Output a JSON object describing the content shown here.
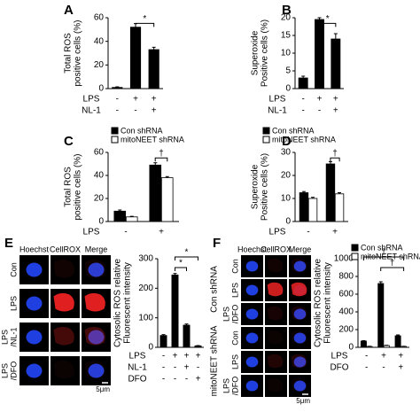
{
  "chart_data": [
    {
      "type": "bar",
      "panel": "A",
      "ylabel": [
        "Total ROS",
        "positive cells (%)"
      ],
      "values": [
        1,
        52,
        33
      ],
      "errors": [
        0.5,
        3,
        2
      ],
      "color": "#000000",
      "ylim": [
        0,
        60
      ],
      "yticks": [
        0,
        20,
        40,
        60
      ],
      "conditions": [
        {
          "name": "LPS",
          "values": [
            "-",
            "+",
            "+"
          ]
        },
        {
          "name": "NL-1",
          "values": [
            "-",
            "-",
            "+"
          ]
        }
      ],
      "annotations": [
        "*"
      ]
    },
    {
      "type": "bar",
      "panel": "B",
      "ylabel": [
        "Superoxide",
        "Positive cells (%)"
      ],
      "values": [
        3,
        19.5,
        14
      ],
      "errors": [
        0.5,
        0.5,
        1.5
      ],
      "color": "#000000",
      "ylim": [
        0,
        20
      ],
      "yticks": [
        0,
        5,
        10,
        15,
        20
      ],
      "conditions": [
        {
          "name": "LPS",
          "values": [
            "-",
            "+",
            "+"
          ]
        },
        {
          "name": "NL-1",
          "values": [
            "-",
            "-",
            "+"
          ]
        }
      ],
      "annotations": [
        "*"
      ]
    },
    {
      "type": "bar",
      "panel": "C",
      "ylabel": [
        "Total ROS",
        "positive cells (%)"
      ],
      "series": [
        {
          "name": "Con shRNA",
          "color": "#000000",
          "values": [
            9,
            49
          ],
          "errors": [
            1,
            2
          ]
        },
        {
          "name": "mitoNEET shRNA",
          "color": "#ffffff",
          "values": [
            4,
            38
          ],
          "errors": [
            0.5,
            1
          ]
        }
      ],
      "ylim": [
        0,
        60
      ],
      "yticks": [
        0,
        20,
        40,
        60
      ],
      "conditions": [
        {
          "name": "LPS",
          "values": [
            "-",
            "+"
          ]
        }
      ],
      "annotations": [
        "†"
      ]
    },
    {
      "type": "bar",
      "panel": "D",
      "ylabel": [
        "Superoxide",
        "Positive cells (%)"
      ],
      "series": [
        {
          "name": "Con shRNA",
          "color": "#000000",
          "values": [
            12.5,
            25
          ],
          "errors": [
            0.5,
            1
          ]
        },
        {
          "name": "mitoNEET shRNA",
          "color": "#ffffff",
          "values": [
            10,
            12
          ],
          "errors": [
            0.5,
            0.5
          ]
        }
      ],
      "ylim": [
        0,
        30
      ],
      "yticks": [
        0,
        10,
        20,
        30
      ],
      "conditions": [
        {
          "name": "LPS",
          "values": [
            "-",
            "+"
          ]
        }
      ],
      "annotations": [
        "†"
      ]
    },
    {
      "type": "bar",
      "ylabel": [
        "Cytosolic ROS relative",
        "Fluorescent intensity"
      ],
      "values": [
        40,
        245,
        75,
        5
      ],
      "errors": [
        3,
        5,
        4,
        1
      ],
      "color": "#000000",
      "ylim": [
        0,
        300
      ],
      "yticks": [
        0,
        100,
        200,
        300
      ],
      "conditions": [
        {
          "name": "LPS",
          "values": [
            "-",
            "+",
            "+",
            "+"
          ]
        },
        {
          "name": "NL-1",
          "values": [
            "-",
            "-",
            "+",
            "-"
          ]
        },
        {
          "name": "DFO",
          "values": [
            "-",
            "-",
            "-",
            "+"
          ]
        }
      ],
      "annotations": [
        "*",
        "*"
      ]
    },
    {
      "type": "bar",
      "ylabel": [
        "Cytosolic ROS relative",
        "Fluorescent intensity"
      ],
      "series": [
        {
          "name": "Con shRNA",
          "color": "#000000",
          "values": [
            70,
            720,
            130
          ],
          "errors": [
            5,
            20,
            10
          ]
        },
        {
          "name": "mitoNEET shRNA",
          "color": "#ffffff",
          "values": [
            10,
            20,
            10
          ],
          "errors": [
            2,
            3,
            2
          ]
        }
      ],
      "ylim": [
        0,
        1000
      ],
      "yticks": [
        0,
        200,
        400,
        600,
        800,
        1000
      ],
      "conditions": [
        {
          "name": "LPS",
          "values": [
            "-",
            "+",
            "+"
          ]
        },
        {
          "name": "DFO",
          "values": [
            "-",
            "-",
            "+"
          ]
        }
      ],
      "annotations": [
        "†",
        "†"
      ]
    }
  ],
  "micrographs": [
    {
      "panel": "E",
      "columns": [
        "Hoechst",
        "CellROX",
        "Merge"
      ],
      "rows": [
        [
          "Con"
        ],
        [
          "LPS"
        ],
        [
          "LPS",
          "/NL-1"
        ],
        [
          "LPS",
          "/DFO"
        ]
      ],
      "scale": "5μm"
    },
    {
      "panel": "F",
      "columns": [
        "Hoechst",
        "CellROX",
        "Merge"
      ],
      "groups": [
        "Con shRNA",
        "mitoNEET shRNA"
      ],
      "rows": [
        [
          "Con"
        ],
        [
          "LPS"
        ],
        [
          "LPS",
          "/DFO"
        ],
        [
          "Con"
        ],
        [
          "LPS"
        ],
        [
          "LPS",
          "/DFO"
        ]
      ],
      "scale": "5μm"
    }
  ]
}
